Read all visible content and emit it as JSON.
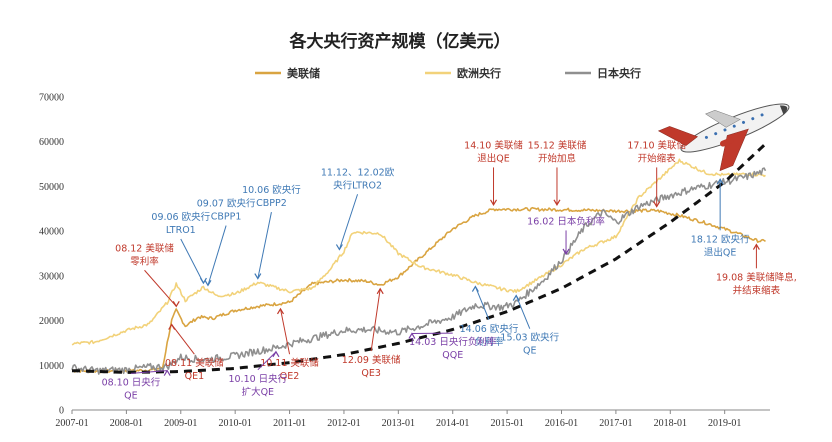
{
  "chart_data": {
    "type": "line",
    "title": "各大央行资产规模（亿美元）",
    "xlabel": "",
    "ylabel": "",
    "xlim": [
      "2007-01",
      "2019-11"
    ],
    "ylim": [
      0,
      70000
    ],
    "yticks": [
      0,
      10000,
      20000,
      30000,
      40000,
      50000,
      60000,
      70000
    ],
    "xticks": [
      "2007-01",
      "2008-01",
      "2009-01",
      "2010-01",
      "2011-01",
      "2012-01",
      "2013-01",
      "2014-01",
      "2015-01",
      "2016-01",
      "2017-01",
      "2018-01",
      "2019-01"
    ],
    "grid": false,
    "legend_position": "top-center",
    "series": [
      {
        "name": "美联储",
        "color": "#d9a441",
        "points": [
          [
            "2007-01",
            8800
          ],
          [
            "2007-07",
            8700
          ],
          [
            "2008-01",
            8700
          ],
          [
            "2008-07",
            9000
          ],
          [
            "2008-09",
            9500
          ],
          [
            "2008-10",
            15000
          ],
          [
            "2008-11",
            20000
          ],
          [
            "2008-12",
            22300
          ],
          [
            "2009-02",
            18800
          ],
          [
            "2009-05",
            20800
          ],
          [
            "2009-08",
            20500
          ],
          [
            "2010-01",
            22300
          ],
          [
            "2010-06",
            23200
          ],
          [
            "2011-01",
            24100
          ],
          [
            "2011-06",
            28200
          ],
          [
            "2012-01",
            29100
          ],
          [
            "2012-06",
            28800
          ],
          [
            "2012-09",
            28000
          ],
          [
            "2013-01",
            29800
          ],
          [
            "2013-06",
            34200
          ],
          [
            "2014-01",
            40500
          ],
          [
            "2014-06",
            43500
          ],
          [
            "2014-10",
            44900
          ],
          [
            "2015-06",
            44900
          ],
          [
            "2016-01",
            44800
          ],
          [
            "2016-06",
            44700
          ],
          [
            "2017-01",
            44500
          ],
          [
            "2017-10",
            44600
          ],
          [
            "2018-03",
            43500
          ],
          [
            "2018-09",
            41800
          ],
          [
            "2019-03",
            39800
          ],
          [
            "2019-08",
            37900
          ],
          [
            "2019-10",
            37700
          ]
        ]
      },
      {
        "name": "欧洲央行",
        "color": "#f2d27a",
        "points": [
          [
            "2007-01",
            14800
          ],
          [
            "2007-06",
            15200
          ],
          [
            "2008-01",
            17800
          ],
          [
            "2008-06",
            19200
          ],
          [
            "2008-10",
            24000
          ],
          [
            "2008-12",
            28200
          ],
          [
            "2009-02",
            24500
          ],
          [
            "2009-06",
            27500
          ],
          [
            "2009-09",
            25500
          ],
          [
            "2010-01",
            26000
          ],
          [
            "2010-06",
            28500
          ],
          [
            "2011-01",
            26500
          ],
          [
            "2011-06",
            27200
          ],
          [
            "2011-10",
            31500
          ],
          [
            "2012-01",
            35500
          ],
          [
            "2012-03",
            39800
          ],
          [
            "2012-09",
            39500
          ],
          [
            "2013-01",
            35000
          ],
          [
            "2013-06",
            32000
          ],
          [
            "2014-01",
            30200
          ],
          [
            "2014-06",
            28500
          ],
          [
            "2014-12",
            27000
          ],
          [
            "2015-03",
            26500
          ],
          [
            "2015-09",
            30000
          ],
          [
            "2016-01",
            32500
          ],
          [
            "2016-06",
            36000
          ],
          [
            "2017-01",
            38800
          ],
          [
            "2017-06",
            47500
          ],
          [
            "2017-12",
            53000
          ],
          [
            "2018-03",
            55800
          ],
          [
            "2018-09",
            53000
          ],
          [
            "2019-01",
            52500
          ],
          [
            "2019-06",
            52800
          ],
          [
            "2019-10",
            52500
          ]
        ]
      },
      {
        "name": "日本央行",
        "color": "#8f8f8f",
        "points": [
          [
            "2007-01",
            9500
          ],
          [
            "2007-06",
            8800
          ],
          [
            "2008-01",
            9000
          ],
          [
            "2008-06",
            9600
          ],
          [
            "2008-10",
            9700
          ],
          [
            "2009-01",
            11800
          ],
          [
            "2009-06",
            11200
          ],
          [
            "2010-01",
            12100
          ],
          [
            "2010-06",
            13200
          ],
          [
            "2010-10",
            13900
          ],
          [
            "2011-01",
            14800
          ],
          [
            "2011-06",
            16000
          ],
          [
            "2012-01",
            17800
          ],
          [
            "2012-06",
            18000
          ],
          [
            "2013-01",
            17400
          ],
          [
            "2013-06",
            18800
          ],
          [
            "2014-01",
            20800
          ],
          [
            "2014-06",
            23500
          ],
          [
            "2014-12",
            23000
          ],
          [
            "2015-03",
            24000
          ],
          [
            "2015-09",
            29000
          ],
          [
            "2016-01",
            33500
          ],
          [
            "2016-06",
            40800
          ],
          [
            "2016-10",
            44300
          ],
          [
            "2017-01",
            42000
          ],
          [
            "2017-06",
            45500
          ],
          [
            "2018-01",
            48000
          ],
          [
            "2018-06",
            49500
          ],
          [
            "2019-01",
            51000
          ],
          [
            "2019-06",
            52200
          ],
          [
            "2019-10",
            53500
          ]
        ]
      },
      {
        "name": "",
        "style": "dashed-trend",
        "color": "#111111",
        "points": [
          [
            "2007-01",
            8800
          ],
          [
            "2008-01",
            8400
          ],
          [
            "2009-01",
            8600
          ],
          [
            "2010-01",
            9300
          ],
          [
            "2011-01",
            10600
          ],
          [
            "2012-01",
            12400
          ],
          [
            "2013-01",
            14900
          ],
          [
            "2014-01",
            18000
          ],
          [
            "2015-01",
            22000
          ],
          [
            "2016-01",
            27200
          ],
          [
            "2017-01",
            33800
          ],
          [
            "2018-01",
            42000
          ],
          [
            "2019-01",
            51000
          ],
          [
            "2019-10",
            59500
          ]
        ]
      }
    ],
    "annotations": [
      {
        "lines": [
          "14.10 美联储",
          "退出QE"
        ],
        "color": "#c0392b",
        "at": [
          "2014-10",
          45000
        ],
        "text_at": [
          "2014-10",
          58500
        ]
      },
      {
        "lines": [
          "15.12 美联储",
          "开始加息"
        ],
        "color": "#c0392b",
        "at": [
          "2015-12",
          45000
        ],
        "text_at": [
          "2015-12",
          58500
        ]
      },
      {
        "lines": [
          "17.10 美联储",
          "开始缩表"
        ],
        "color": "#c0392b",
        "at": [
          "2017-10",
          44600
        ],
        "text_at": [
          "2017-10",
          58500
        ]
      },
      {
        "lines": [
          "08.12 美联储",
          "零利率"
        ],
        "color": "#c0392b",
        "at": [
          "2008-12",
          22300
        ],
        "text_at": [
          "2008-05",
          35500
        ]
      },
      {
        "lines": [
          "12.09 美联储",
          "QE3"
        ],
        "color": "#c0392b",
        "at": [
          "2012-09",
          28000
        ],
        "text_at": [
          "2012-07",
          10500
        ]
      },
      {
        "lines": [
          "10.11 美联储",
          "QE2"
        ],
        "color": "#c0392b",
        "at": [
          "2010-11",
          23500
        ],
        "text_at": [
          "2011-01",
          9800
        ]
      },
      {
        "lines": [
          "08.11 美联储",
          "QE1"
        ],
        "color": "#c0392b",
        "at": [
          "2008-11",
          20000
        ],
        "text_at": [
          "2009-04",
          9800
        ]
      },
      {
        "lines": [
          "19.08 美联储降息,",
          "并结束缩表"
        ],
        "color": "#c0392b",
        "at": [
          "2019-08",
          37900
        ],
        "text_at": [
          "2019-08",
          29000
        ]
      },
      {
        "lines": [
          "09.06 欧央行",
          "LTRO1"
        ],
        "color": "#3f79b5",
        "at": [
          "2009-06",
          27500
        ],
        "text_at": [
          "2009-01",
          42500
        ]
      },
      {
        "lines": [
          "09.07 欧央行",
          "CBPP1"
        ],
        "color": "#3f79b5",
        "at": [
          "2009-07",
          27000
        ],
        "text_at": [
          "2009-11",
          45500
        ]
      },
      {
        "lines": [
          "10.06 欧央行",
          "CBPP2"
        ],
        "color": "#3f79b5",
        "at": [
          "2010-06",
          28500
        ],
        "text_at": [
          "2010-09",
          48500
        ]
      },
      {
        "lines": [
          "11.12、12.02欧",
          "央行LTRO2"
        ],
        "color": "#3f79b5",
        "at": [
          "2011-12",
          35000
        ],
        "text_at": [
          "2012-04",
          52500
        ]
      },
      {
        "lines": [
          "14.06 欧央行",
          "负利率"
        ],
        "color": "#3f79b5",
        "at": [
          "2014-06",
          28500
        ],
        "text_at": [
          "2014-09",
          17500
        ]
      },
      {
        "lines": [
          "15.03 欧央行",
          "QE"
        ],
        "color": "#3f79b5",
        "at": [
          "2015-03",
          26500
        ],
        "text_at": [
          "2015-06",
          15500
        ]
      },
      {
        "lines": [
          "18.12 欧央行",
          "退出QE"
        ],
        "color": "#3f79b5",
        "at": [
          "2018-12",
          52500
        ],
        "text_at": [
          "2018-12",
          37500
        ]
      },
      {
        "lines": [
          "08.10 日央行",
          "QE"
        ],
        "color": "#7a3fa6",
        "at": [
          "2008-10",
          9700
        ],
        "text_at": [
          "2008-02",
          5500
        ]
      },
      {
        "lines": [
          "10.10 日央行",
          "扩大QE"
        ],
        "color": "#7a3fa6",
        "at": [
          "2010-10",
          13900
        ],
        "text_at": [
          "2010-06",
          6300
        ]
      },
      {
        "lines": [
          "14.03 日央行负利率",
          "QQE"
        ],
        "color": "#7a3fa6",
        "at": [
          "2013-04",
          18000
        ],
        "text_at": [
          "2014-01",
          14500
        ]
      },
      {
        "lines": [
          "16.02 日本负利率"
        ],
        "color": "#7a3fa6",
        "at": [
          "2016-02",
          34000
        ],
        "text_at": [
          "2016-02",
          41500
        ]
      }
    ]
  }
}
